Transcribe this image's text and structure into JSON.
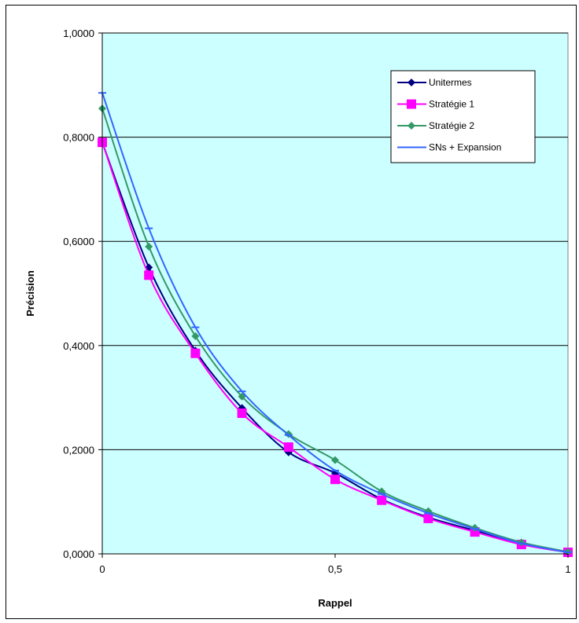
{
  "chart_data": {
    "type": "line",
    "xlabel": "Rappel",
    "ylabel": "Précision",
    "xlim": [
      0,
      1
    ],
    "ylim": [
      0,
      1
    ],
    "x_ticks": [
      "0",
      "0,5",
      "1"
    ],
    "y_ticks": [
      "0,0000",
      "0,2000",
      "0,4000",
      "0,6000",
      "0,8000",
      "1,0000"
    ],
    "grid": "horizontal",
    "legend_position": "top-right",
    "plot_background": "#ccffff",
    "x": [
      0,
      0.1,
      0.2,
      0.3,
      0.4,
      0.5,
      0.6,
      0.7,
      0.8,
      0.9,
      1.0
    ],
    "series": [
      {
        "name": "Unitermes",
        "color": "#000080",
        "marker": "diamond",
        "values": [
          0.79,
          0.55,
          0.39,
          0.28,
          0.195,
          0.155,
          0.105,
          0.07,
          0.045,
          0.02,
          0.003
        ]
      },
      {
        "name": "Stratégie 1",
        "color": "#ff00ff",
        "marker": "square",
        "values": [
          0.79,
          0.535,
          0.385,
          0.27,
          0.205,
          0.143,
          0.103,
          0.068,
          0.042,
          0.018,
          0.003
        ]
      },
      {
        "name": "Stratégie 2",
        "color": "#339966",
        "marker": "diamond",
        "values": [
          0.855,
          0.59,
          0.418,
          0.302,
          0.23,
          0.18,
          0.12,
          0.082,
          0.05,
          0.022,
          0.004
        ]
      },
      {
        "name": "SNs + Expansion",
        "color": "#3366ff",
        "marker": "dash",
        "values": [
          0.885,
          0.625,
          0.435,
          0.312,
          0.228,
          0.16,
          0.115,
          0.078,
          0.048,
          0.02,
          0.003
        ]
      }
    ]
  }
}
